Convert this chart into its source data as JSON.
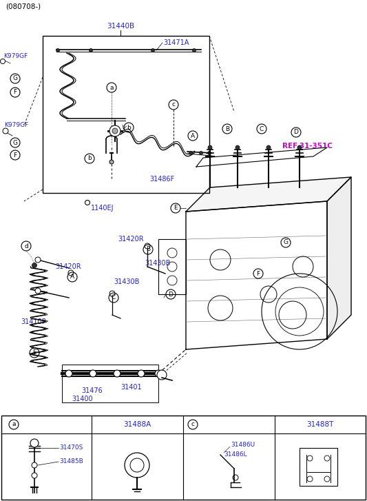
{
  "title_code": "(080708-)",
  "bg_color": "#ffffff",
  "line_color": "#000000",
  "label_color": "#2222cc",
  "ref_color": "#cc00cc",
  "labels": {
    "top_code": "31440B",
    "inset_label1": "31471A",
    "inset_label2": "31486F",
    "left_label1": "K979GF",
    "left_label2": "1140EJ",
    "mid_label_31420R_top": "31420R",
    "mid_label_31420R_left": "31420R",
    "mid_label_31430B_top": "31430B",
    "mid_label_31430B_bot": "31430B",
    "mid_label_31410P": "31410P",
    "mid_label_31401": "31401",
    "mid_label_31476": "31476",
    "mid_label_31400": "31400",
    "ref_label": "REF.31-351C",
    "box_a_code1": "31470S",
    "box_a_code2": "31485B",
    "box_b_code": "31488A",
    "box_c_code1": "31486U",
    "box_c_code2": "31486L",
    "box_d_code": "31488T"
  }
}
